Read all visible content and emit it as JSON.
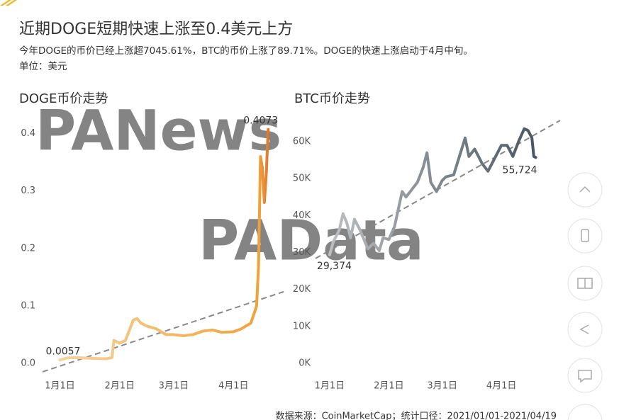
{
  "header": {
    "title": "近期DOGE短期快速上涨至0.4美元上方",
    "subtitle": "今年DOGE的币价已经上涨超7045.61%，BTC的币价上涨了89.71%。DOGE的快速上涨启动于4月中旬。",
    "unit": "单位：美元"
  },
  "watermarks": [
    "PANews",
    "PAData"
  ],
  "source": "数据来源：CoinMarketCap；统计口径：2021/01/01-2021/04/19",
  "chart_data": [
    {
      "type": "line",
      "title": "DOGE币价走势",
      "color": "#f0a23a",
      "end_color": "#c0311a",
      "x": [
        0,
        4,
        9,
        14,
        19,
        24,
        27,
        28,
        31,
        34,
        38,
        40,
        42,
        45,
        50,
        55,
        59,
        64,
        69,
        74,
        79,
        84,
        90,
        94,
        99,
        102,
        103,
        104,
        105,
        106,
        107,
        108
      ],
      "values": [
        0.0057,
        0.0095,
        0.01,
        0.009,
        0.0085,
        0.008,
        0.01,
        0.04,
        0.035,
        0.04,
        0.075,
        0.078,
        0.07,
        0.065,
        0.06,
        0.05,
        0.05,
        0.048,
        0.05,
        0.056,
        0.058,
        0.054,
        0.055,
        0.06,
        0.07,
        0.1,
        0.17,
        0.36,
        0.34,
        0.28,
        0.33,
        0.4073
      ],
      "value_labels": [
        "0.0057",
        null,
        null,
        null,
        null,
        null,
        null,
        null,
        null,
        null,
        null,
        null,
        null,
        null,
        null,
        null,
        null,
        null,
        null,
        null,
        null,
        null,
        null,
        null,
        null,
        null,
        null,
        null,
        null,
        null,
        null,
        "0.4073"
      ],
      "xlim": [
        -9,
        116
      ],
      "xticks": [
        {
          "value": 0,
          "label": "1月1日"
        },
        {
          "value": 31,
          "label": "2月1日"
        },
        {
          "value": 59,
          "label": "3月1日"
        },
        {
          "value": 90,
          "label": "4月1日"
        }
      ],
      "ylim": [
        -0.021,
        0.423
      ],
      "yticks": [
        {
          "value": 0,
          "label": "0.0"
        },
        0.1,
        0.2,
        0.3,
        0.4
      ],
      "trend": {
        "x": [
          -9,
          116
        ],
        "values": [
          -0.0148,
          0.1247
        ]
      }
    },
    {
      "type": "line",
      "title": "BTC币价走势",
      "color": "#c4c7c9",
      "end_color": "#3c4a57",
      "x": [
        0,
        2,
        5,
        7,
        9,
        11,
        13,
        16,
        20,
        23,
        26,
        28,
        31,
        34,
        38,
        40,
        43,
        46,
        49,
        51,
        53,
        56,
        59,
        61,
        65,
        68,
        71,
        73,
        76,
        80,
        83,
        86,
        90,
        93,
        96,
        99,
        102,
        104,
        106,
        107,
        108
      ],
      "values": [
        29374,
        33000,
        36000,
        40500,
        38000,
        34000,
        39000,
        36000,
        31000,
        32500,
        30500,
        34000,
        33500,
        37000,
        46500,
        45000,
        47000,
        49000,
        53000,
        57000,
        49000,
        46500,
        49500,
        50500,
        51000,
        56000,
        61000,
        56000,
        58000,
        54000,
        52000,
        55000,
        59000,
        59000,
        56000,
        60000,
        63500,
        63000,
        61000,
        56000,
        55724
      ],
      "value_labels": [
        "29,374",
        null,
        null,
        null,
        null,
        null,
        null,
        null,
        null,
        null,
        null,
        null,
        null,
        null,
        null,
        null,
        null,
        null,
        null,
        null,
        null,
        null,
        null,
        null,
        null,
        null,
        null,
        null,
        null,
        null,
        null,
        null,
        null,
        null,
        null,
        null,
        null,
        null,
        null,
        null,
        "55,724"
      ],
      "xlim": [
        -7.4,
        120.8
      ],
      "xticks": [
        {
          "value": 0,
          "label": "1月1日"
        },
        {
          "value": 31,
          "label": "2月1日"
        },
        {
          "value": 59,
          "label": "3月1日"
        },
        {
          "value": 90,
          "label": "4月1日"
        }
      ],
      "ylim": [
        -3260,
        65750
      ],
      "yticks": [
        {
          "value": 0,
          "label": "0K"
        },
        {
          "value": 10000,
          "label": "10K"
        },
        {
          "value": 20000,
          "label": "20K"
        },
        {
          "value": 30000,
          "label": "30K"
        },
        {
          "value": 40000,
          "label": "40K"
        },
        {
          "value": 50000,
          "label": "50K"
        },
        {
          "value": 60000,
          "label": "60K"
        }
      ],
      "trend": {
        "x": [
          -7.4,
          120.8
        ],
        "values": [
          28400,
          65750
        ]
      }
    }
  ]
}
